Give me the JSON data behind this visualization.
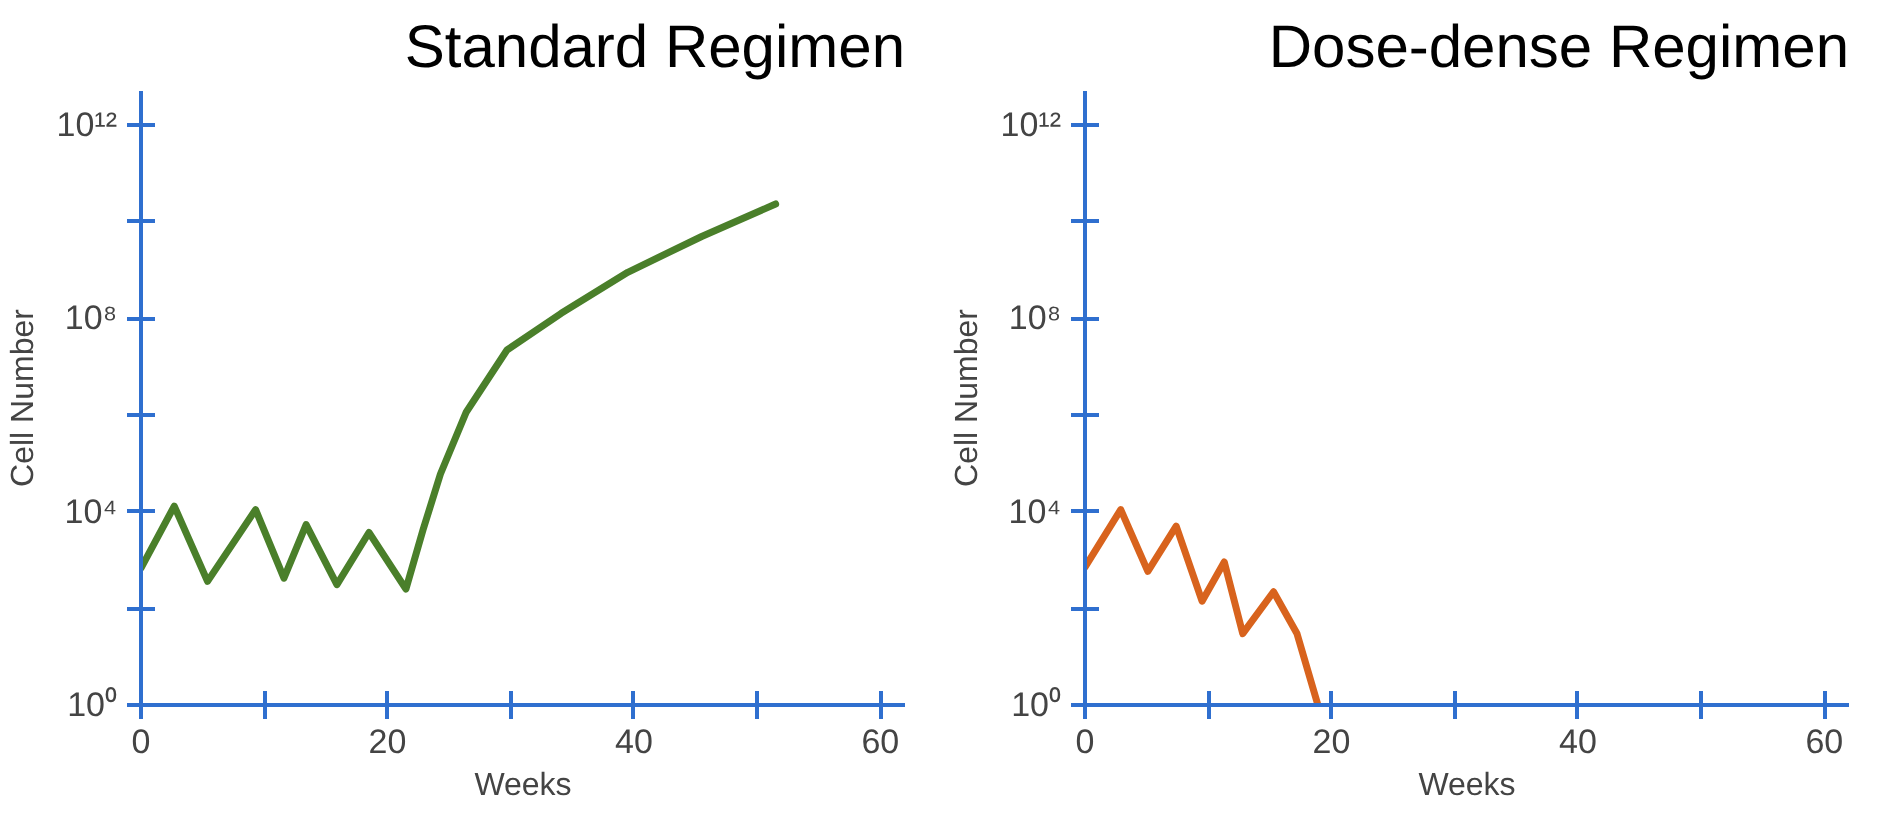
{
  "chart_data": [
    {
      "type": "line",
      "title": "Standard Regimen",
      "xlabel": "Weeks",
      "ylabel": "Cell Number",
      "log": "y",
      "grid": false,
      "marker": "none",
      "line_style": "solid",
      "x": [
        0,
        2.7,
        5.4,
        9.3,
        11.6,
        13.4,
        15.9,
        18.5,
        21.5,
        22.9,
        24.3,
        26.4,
        29.7,
        34.1,
        39.5,
        45.5,
        51.5
      ],
      "series": [
        {
          "color": "#4a7f2a",
          "values": [
            680,
            13000,
            360,
            11000,
            420,
            5400,
            310,
            3700,
            250,
            4300,
            60000,
            1150000,
            22000000,
            126000000,
            890000000,
            4900000000,
            23000000000
          ]
        }
      ],
      "xlim": [
        0,
        62
      ],
      "xticks": [
        0,
        {
          "value": 10,
          "label": null
        },
        20,
        {
          "value": 30,
          "label": null
        },
        40,
        {
          "value": 50,
          "label": null
        },
        60
      ],
      "ylim": [
        1,
        5000000000000
      ],
      "yticks": [
        {
          "value": 1,
          "label": "10⁰"
        },
        {
          "value": 100,
          "label": null
        },
        {
          "value": 10000,
          "label": "10⁴"
        },
        {
          "value": 1000000,
          "label": null
        },
        {
          "value": 100000000,
          "label": "10⁸"
        },
        {
          "value": 10000000000,
          "label": null
        },
        {
          "value": 1000000000000,
          "label": "10¹²"
        }
      ]
    },
    {
      "type": "line",
      "title": "Dose-dense Regimen",
      "xlabel": "Weeks",
      "ylabel": "Cell Number",
      "log": "y",
      "grid": false,
      "marker": "none",
      "line_style": "solid",
      "x": [
        0,
        2.9,
        5.1,
        7.4,
        9.5,
        11.3,
        12.8,
        15.3,
        17.2,
        18.9
      ],
      "series": [
        {
          "color": "#d8631d",
          "values": [
            710,
            11000,
            580,
            5000,
            140,
            910,
            30,
            220,
            30,
            1
          ]
        }
      ],
      "xlim": [
        0,
        62
      ],
      "xticks": [
        0,
        {
          "value": 10,
          "label": null
        },
        20,
        {
          "value": 30,
          "label": null
        },
        40,
        {
          "value": 50,
          "label": null
        },
        60
      ],
      "ylim": [
        1,
        5000000000000
      ],
      "yticks": [
        {
          "value": 1,
          "label": "10⁰"
        },
        {
          "value": 100,
          "label": null
        },
        {
          "value": 10000,
          "label": "10⁴"
        },
        {
          "value": 1000000,
          "label": null
        },
        {
          "value": 100000000,
          "label": "10⁸"
        },
        {
          "value": 10000000000,
          "label": null
        },
        {
          "value": 1000000000000,
          "label": "10¹²"
        }
      ]
    }
  ]
}
